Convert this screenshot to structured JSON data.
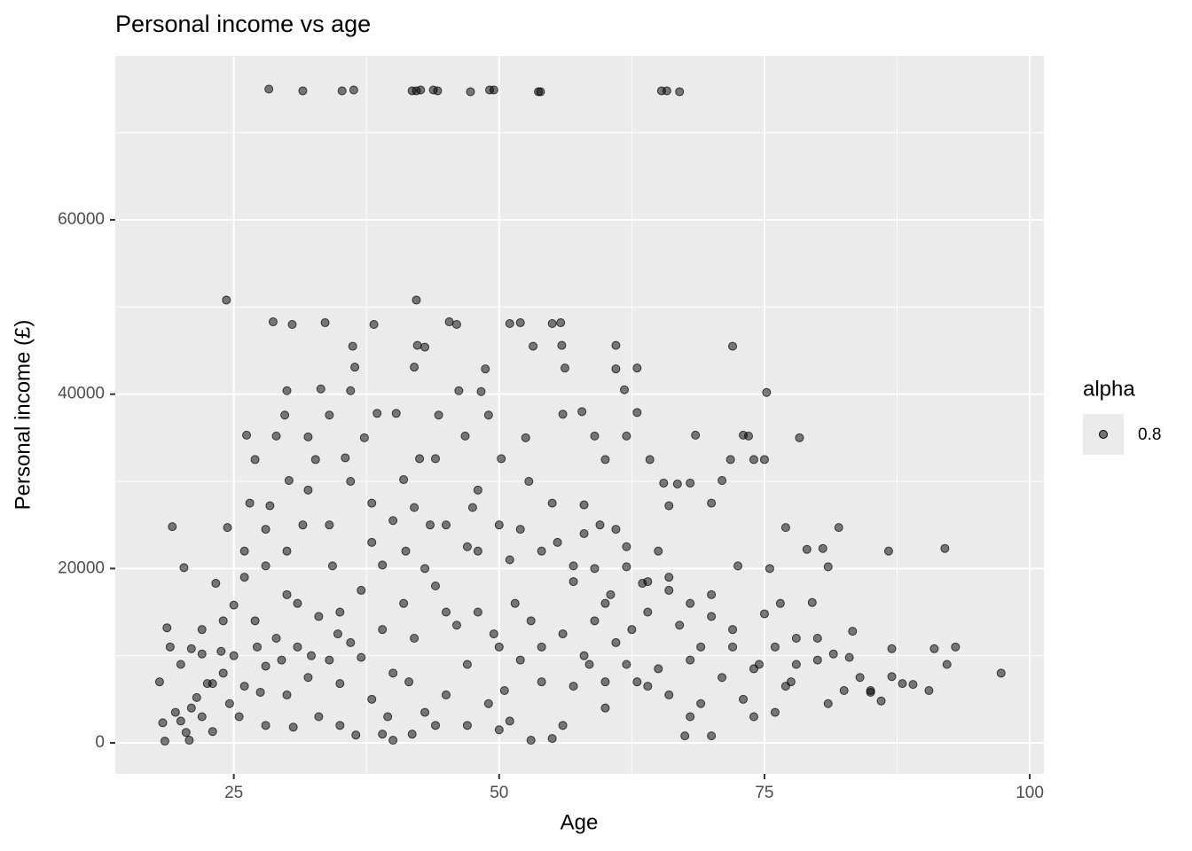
{
  "chart_data": {
    "type": "scatter",
    "title": "Personal income vs age",
    "x_label": "Age",
    "y_label": "Personal income (£)",
    "xlim": [
      13.83,
      101.33
    ],
    "ylim": [
      -3559,
      78814
    ],
    "xticks": [
      25,
      50,
      75,
      100
    ],
    "yticks": [
      0,
      20000,
      40000,
      60000
    ],
    "minor_xticks": [
      37.5,
      62.5,
      87.5
    ],
    "minor_yticks": [
      10000,
      30000,
      50000,
      70000
    ],
    "grid": true,
    "legend_title": "alpha",
    "legend_position": "right",
    "series": [
      {
        "name": "0.8",
        "color": "#000000",
        "opacity": 0.5,
        "x": [
          28.3,
          31.5,
          35.2,
          36.3,
          41.8,
          42.2,
          42.6,
          43.8,
          44.2,
          47.3,
          49.1,
          49.5,
          53.7,
          53.9,
          65.3,
          65.8,
          67,
          18,
          18.3,
          18.5,
          18.7,
          19.2,
          19.5,
          20,
          20.3,
          20.8,
          21,
          21.5,
          22,
          22.5,
          23,
          23.3,
          23.8,
          24.3,
          24.4,
          24.6,
          25,
          25.5,
          26,
          26.2,
          26.5,
          27,
          27.2,
          27.5,
          28,
          28.4,
          28.7,
          29,
          29.5,
          29.8,
          30,
          30.2,
          30.5,
          30.6,
          31,
          31.5,
          32,
          32.3,
          32.7,
          33.2,
          33.6,
          34,
          34.3,
          34.8,
          35,
          35.5,
          36,
          36.2,
          36.4,
          36.5,
          37,
          37.3,
          38,
          38.2,
          38.5,
          39,
          39.5,
          40,
          40.3,
          41,
          41.2,
          41.5,
          41.8,
          42,
          42.2,
          42.3,
          42.5,
          43,
          43.5,
          44,
          44.3,
          45,
          45.3,
          46,
          46.2,
          46.8,
          47.5,
          48,
          48.3,
          48.7,
          49,
          49.5,
          50,
          50.2,
          50.5,
          51,
          51.5,
          52,
          52.5,
          52.8,
          53.2,
          54,
          55,
          55.5,
          55.8,
          55.9,
          56,
          56.2,
          57,
          57.8,
          58,
          58.5,
          59,
          59.5,
          60,
          60.5,
          61,
          61,
          61.8,
          62,
          62.5,
          63,
          63,
          63.5,
          64.2,
          65,
          65.5,
          66,
          66.8,
          67.5,
          68,
          68.5,
          69,
          70,
          71,
          71.8,
          72,
          72.5,
          73,
          73.5,
          74,
          74.5,
          75,
          75.2,
          75.5,
          76,
          76.5,
          77,
          77.5,
          78,
          78.3,
          79,
          79.5,
          80,
          80.5,
          81,
          81.5,
          82,
          82.5,
          83.3,
          84,
          85,
          86,
          86.7,
          87,
          88,
          89,
          90.5,
          91,
          92,
          92.2,
          93,
          97.3,
          20,
          21,
          22,
          23,
          24,
          25,
          26,
          27,
          28,
          29,
          30,
          31,
          32,
          33,
          34,
          35,
          36,
          37,
          38,
          39,
          40,
          41,
          42,
          43,
          44,
          45,
          46,
          47,
          48,
          49,
          50,
          51,
          52,
          53,
          54,
          55,
          56,
          57,
          58,
          59,
          60,
          61,
          62,
          63,
          64,
          65,
          66,
          67,
          68,
          69,
          70,
          71,
          72,
          73,
          74,
          75,
          76,
          77,
          78,
          80,
          81,
          83,
          85,
          87,
          19,
          20.5,
          22,
          24,
          26,
          28,
          30,
          33,
          35,
          39,
          44,
          47,
          50,
          53,
          56,
          60,
          62,
          64,
          66,
          68,
          70,
          72,
          74,
          42,
          45,
          47,
          52,
          55,
          58,
          60,
          61,
          38,
          34,
          32,
          30,
          28,
          36,
          40,
          43,
          48,
          51,
          54,
          57,
          59,
          62,
          64,
          66,
          68,
          70
        ],
        "values": [
          75000,
          74800,
          74800,
          74900,
          74800,
          74800,
          74900,
          74900,
          74800,
          74700,
          74900,
          74900,
          74700,
          74700,
          74800,
          74800,
          74700,
          7000,
          2300,
          200,
          13200,
          24800,
          3500,
          9000,
          20100,
          300,
          10800,
          5200,
          13000,
          6800,
          1300,
          18300,
          10500,
          50800,
          24700,
          4500,
          15800,
          3000,
          22000,
          35300,
          27500,
          32500,
          11000,
          5800,
          20300,
          27200,
          48300,
          35200,
          9500,
          37600,
          40400,
          30100,
          48000,
          1800,
          16000,
          25000,
          35100,
          10000,
          32500,
          40600,
          48200,
          37600,
          20300,
          12500,
          6800,
          32700,
          40400,
          45500,
          43100,
          900,
          9800,
          35000,
          27500,
          48000,
          37800,
          20400,
          3000,
          300,
          37800,
          30200,
          22000,
          7000,
          1000,
          43100,
          50800,
          45600,
          32600,
          45400,
          25000,
          32600,
          37600,
          15000,
          48300,
          48000,
          40400,
          35200,
          27000,
          22000,
          40300,
          42900,
          37600,
          12500,
          25000,
          32600,
          6000,
          48100,
          16000,
          48200,
          35000,
          30000,
          45500,
          11000,
          48100,
          23000,
          48200,
          45600,
          37700,
          43000,
          20300,
          38000,
          27300,
          9000,
          35200,
          25000,
          7000,
          17000,
          45600,
          42900,
          40500,
          35200,
          13000,
          43000,
          37900,
          18300,
          32500,
          22000,
          29800,
          27200,
          29700,
          800,
          29800,
          35300,
          11000,
          27500,
          30100,
          32500,
          45500,
          20300,
          35300,
          35200,
          32500,
          9000,
          32500,
          40200,
          20000,
          3500,
          16000,
          24700,
          7000,
          9000,
          35000,
          22200,
          16100,
          12000,
          22300,
          20200,
          10200,
          24700,
          6000,
          12800,
          7500,
          6000,
          4800,
          22000,
          7600,
          6800,
          6700,
          6000,
          10800,
          22300,
          9000,
          11000,
          8000,
          2500,
          4000,
          10200,
          6800,
          8000,
          10000,
          6500,
          14000,
          8800,
          12000,
          17000,
          11000,
          7500,
          14500,
          9500,
          15000,
          11500,
          17500,
          5000,
          13000,
          8000,
          16000,
          12000,
          3500,
          18000,
          5500,
          13500,
          9000,
          15000,
          4500,
          11000,
          2500,
          9500,
          14000,
          7000,
          500,
          12500,
          6500,
          10000,
          14000,
          4000,
          11500,
          9000,
          7000,
          15000,
          8500,
          5500,
          13500,
          9500,
          4500,
          17000,
          7500,
          11000,
          5000,
          8500,
          14800,
          11000,
          6500,
          12000,
          9500,
          4500,
          9800,
          5800,
          10800,
          11000,
          1200,
          3000,
          14000,
          19000,
          2000,
          5500,
          3000,
          2000,
          1000,
          2000,
          2000,
          1500,
          300,
          2000,
          16000,
          20200,
          6500,
          19000,
          3000,
          800,
          13000,
          3000,
          27000,
          25000,
          22500,
          24500,
          27500,
          24000,
          32500,
          24500,
          23000,
          25000,
          29000,
          22000,
          24500,
          30000,
          25500,
          20000,
          29000,
          21000,
          22000,
          18500,
          20000,
          22500,
          18500,
          17500,
          16000,
          14500
        ]
      }
    ]
  }
}
